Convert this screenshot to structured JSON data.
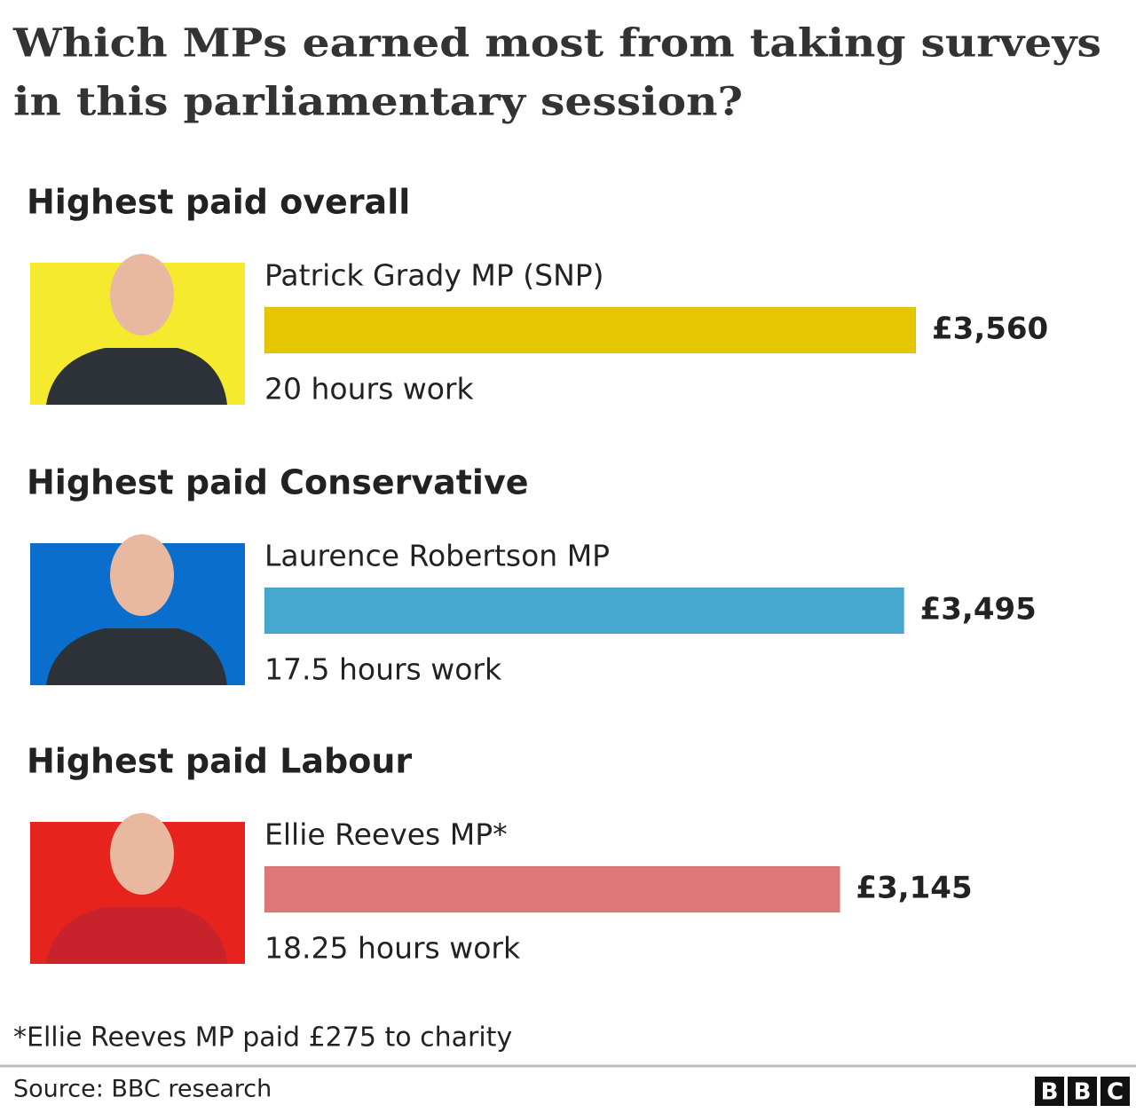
{
  "chart_data": {
    "type": "bar",
    "title": [
      "Which MPs earned most from taking surveys",
      "in this parliamentary session?"
    ],
    "groups": [
      "Highest paid overall",
      "Highest paid Conservative",
      "Highest paid Labour"
    ],
    "categories": [
      "Patrick Grady MP (SNP)",
      "Laurence Robertson MP",
      "Ellie Reeves MP*"
    ],
    "values": [
      3560,
      3495,
      3145
    ],
    "value_labels": [
      "£3,560",
      "£3,495",
      "£3,145"
    ],
    "notes": [
      "20 hours work",
      "17.5 hours work",
      "18.25 hours work"
    ],
    "colors": [
      "#e5c600",
      "#46a7cf",
      "#de7878"
    ],
    "photo_colors": [
      "#f6ea2e",
      "#0a6ecc",
      "#e6231c"
    ],
    "footnote": "*Ellie Reeves MP paid £275 to charity",
    "source": "Source: BBC research",
    "logo": [
      "B",
      "B",
      "C"
    ]
  }
}
